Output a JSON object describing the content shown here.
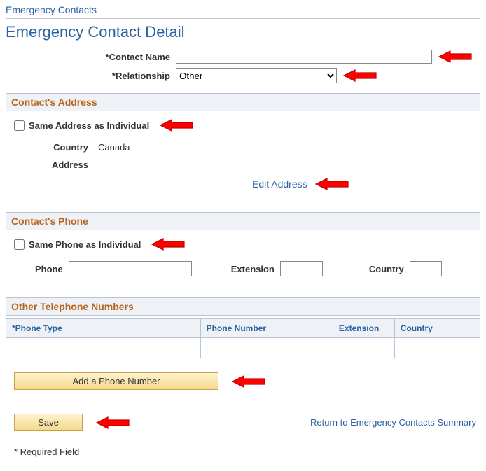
{
  "colors": {
    "link": "#2a62a5",
    "section_title": "#b8651b",
    "section_bg": "#eef2f6",
    "section_border": "#b8c4d2",
    "btn_top": "#fdf2d0",
    "btn_bottom": "#f6d98a",
    "btn_border": "#c9a24a",
    "arrow_stroke": "#c00000",
    "arrow_fill": "#ff0000"
  },
  "breadcrumb": "Emergency Contacts",
  "page_title": "Emergency Contact Detail",
  "form": {
    "contact_name_label": "*Contact Name",
    "contact_name_value": "",
    "relationship_label": "*Relationship",
    "relationship_value": "Other",
    "relationship_options": [
      "Other"
    ]
  },
  "address_section": {
    "header": "Contact's Address",
    "same_label": "Same Address as Individual",
    "same_checked": false,
    "country_label": "Country",
    "country_value": "Canada",
    "address_label": "Address",
    "address_value": "",
    "edit_link": "Edit Address"
  },
  "phone_section": {
    "header": "Contact's Phone",
    "same_label": "Same Phone as Individual",
    "same_checked": false,
    "phone_label": "Phone",
    "phone_value": "",
    "ext_label": "Extension",
    "ext_value": "",
    "country_label": "Country",
    "country_value": ""
  },
  "other_phones": {
    "header": "Other Telephone Numbers",
    "columns": [
      "*Phone Type",
      "Phone Number",
      "Extension",
      "Country"
    ],
    "col_widths_pct": [
      41,
      28,
      13,
      18
    ],
    "rows": [
      [
        "",
        "",
        "",
        ""
      ]
    ]
  },
  "buttons": {
    "add_phone": "Add a Phone Number",
    "save": "Save"
  },
  "return_link": "Return to Emergency Contacts Summary",
  "required_note": "* Required Field"
}
